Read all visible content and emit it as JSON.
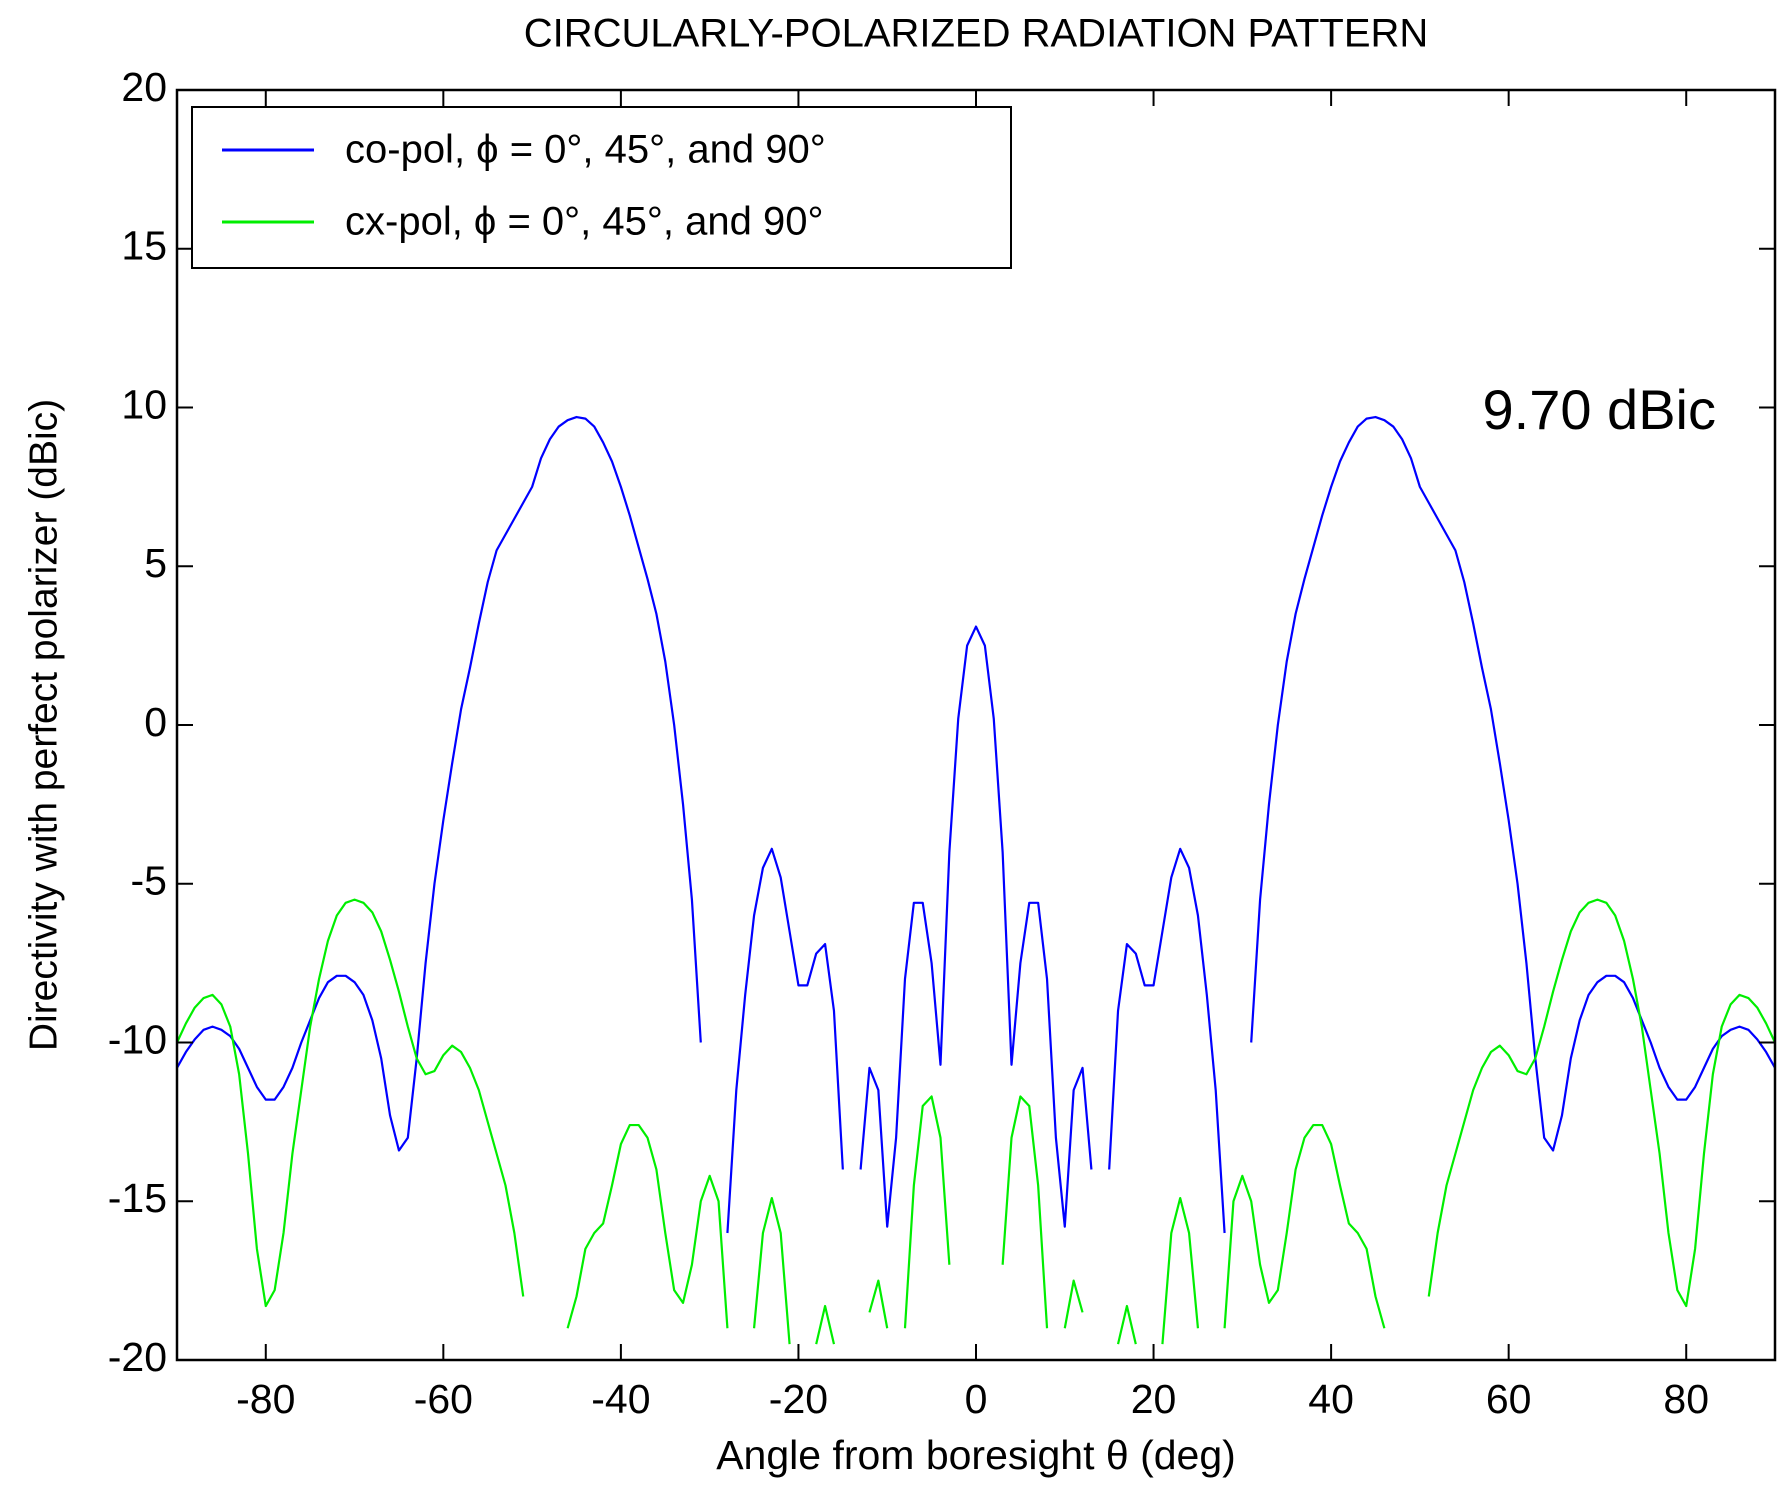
{
  "chart_data": {
    "type": "line",
    "title": "CIRCULARLY-POLARIZED RADIATION PATTERN",
    "x_label": "Angle from boresight θ (deg)",
    "y_label": "Directivity with perfect polarizer (dBic)",
    "annotation": "9.70 dBic",
    "xlim": [
      -90,
      90
    ],
    "xticks": [
      -80,
      -60,
      -40,
      -20,
      0,
      20,
      40,
      60,
      80
    ],
    "ylim": [
      -20,
      20
    ],
    "yticks": [
      -20,
      -15,
      -10,
      -5,
      0,
      5,
      10,
      15,
      20
    ],
    "grid": false,
    "legend": "upper left",
    "x": [
      -90,
      -89,
      -88,
      -87,
      -86,
      -85,
      -84,
      -83,
      -82,
      -81,
      -80,
      -79,
      -78,
      -77,
      -76,
      -75,
      -74,
      -73,
      -72,
      -71,
      -70,
      -69,
      -68,
      -67,
      -66,
      -65,
      -64,
      -63,
      -62,
      -61,
      -60,
      -59,
      -58,
      -57,
      -56,
      -55,
      -54,
      -53,
      -52,
      -51,
      -50,
      -49,
      -48,
      -47,
      -46,
      -45,
      -44,
      -43,
      -42,
      -41,
      -40,
      -39,
      -38,
      -37,
      -36,
      -35,
      -34,
      -33,
      -32,
      -31,
      -30,
      -29,
      -28,
      -27,
      -26,
      -25,
      -24,
      -23,
      -22,
      -21,
      -20,
      -19,
      -18,
      -17,
      -16,
      -15,
      -14,
      -13,
      -12,
      -11,
      -10,
      -9,
      -8,
      -7,
      -6,
      -5,
      -4,
      -3,
      -2,
      -1,
      0,
      1,
      2,
      3,
      4,
      5,
      6,
      7,
      8,
      9,
      10,
      11,
      12,
      13,
      14,
      15,
      16,
      17,
      18,
      19,
      20,
      21,
      22,
      23,
      24,
      25,
      26,
      27,
      28,
      29,
      30,
      31,
      32,
      33,
      34,
      35,
      36,
      37,
      38,
      39,
      40,
      41,
      42,
      43,
      44,
      45,
      46,
      47,
      48,
      49,
      50,
      51,
      52,
      53,
      54,
      55,
      56,
      57,
      58,
      59,
      60,
      61,
      62,
      63,
      64,
      65,
      66,
      67,
      68,
      69,
      70,
      71,
      72,
      73,
      74,
      75,
      76,
      77,
      78,
      79,
      80,
      81,
      82,
      83,
      84,
      85,
      86,
      87,
      88,
      89,
      90
    ],
    "series": [
      {
        "name": "co-pol,  ϕ = 0°, 45°, and 90°",
        "color": "#0000ff",
        "values": [
          -10.8,
          -10.3,
          -9.9,
          -9.6,
          -9.5,
          -9.6,
          -9.8,
          -10.2,
          -10.8,
          -11.4,
          -11.8,
          -11.8,
          -11.4,
          -10.8,
          -10,
          -9.3,
          -8.6,
          -8.1,
          -7.9,
          -7.9,
          -8.1,
          -8.5,
          -9.3,
          -10.5,
          -12.3,
          -13.4,
          -13,
          -10.5,
          -7.5,
          -5,
          -3,
          -1.2,
          0.5,
          1.8,
          3.2,
          4.5,
          5.5,
          6,
          6.5,
          7,
          7.5,
          8.4,
          9.0,
          9.4,
          9.6,
          9.7,
          9.65,
          9.4,
          8.9,
          8.3,
          7.5,
          6.6,
          5.6,
          4.6,
          3.5,
          2,
          0,
          -2.5,
          -5.5,
          -10,
          null,
          null,
          -16,
          -11.5,
          -8.5,
          -6,
          -4.5,
          -3.9,
          -4.8,
          -6.5,
          -8.2,
          -8.2,
          -7.2,
          -6.9,
          -9,
          -14,
          null,
          -14,
          -10.8,
          -11.5,
          -15.8,
          -13,
          -8,
          -5.6,
          -5.6,
          -7.5,
          -10.7,
          -4,
          0.2,
          2.5,
          3.1,
          2.5,
          0.2,
          -4,
          -10.7,
          -7.5,
          -5.6,
          -5.6,
          -8,
          -13,
          -15.8,
          -11.5,
          -10.8,
          -14,
          null,
          -14,
          -9,
          -6.9,
          -7.2,
          -8.2,
          -8.2,
          -6.5,
          -4.8,
          -3.9,
          -4.5,
          -6,
          -8.5,
          -11.5,
          -16,
          null,
          null,
          -10,
          -5.5,
          -2.5,
          0,
          2,
          3.5,
          4.6,
          5.6,
          6.6,
          7.5,
          8.3,
          8.9,
          9.4,
          9.65,
          9.7,
          9.6,
          9.4,
          9.0,
          8.4,
          7.5,
          7,
          6.5,
          6,
          5.5,
          4.5,
          3.2,
          1.8,
          0.5,
          -1.2,
          -3,
          -5,
          -7.5,
          -10.5,
          -13,
          -13.4,
          -12.3,
          -10.5,
          -9.3,
          -8.5,
          -8.1,
          -7.9,
          -7.9,
          -8.1,
          -8.6,
          -9.3,
          -10,
          -10.8,
          -11.4,
          -11.8,
          -11.8,
          -11.4,
          -10.8,
          -10.2,
          -9.8,
          -9.6,
          -9.5,
          -9.6,
          -9.9,
          -10.3,
          -10.8
        ]
      },
      {
        "name": "cx-pol,  ϕ = 0°, 45°, and 90°",
        "color": "#00ee00",
        "values": [
          -10,
          -9.4,
          -8.9,
          -8.6,
          -8.5,
          -8.8,
          -9.5,
          -11,
          -13.5,
          -16.5,
          -18.3,
          -17.8,
          -16,
          -13.5,
          -11.5,
          -9.5,
          -8,
          -6.8,
          -6,
          -5.6,
          -5.5,
          -5.6,
          -5.9,
          -6.5,
          -7.4,
          -8.4,
          -9.5,
          -10.5,
          -11,
          -10.9,
          -10.4,
          -10.1,
          -10.3,
          -10.8,
          -11.5,
          -12.5,
          -13.5,
          -14.5,
          -16,
          -18,
          null,
          null,
          null,
          null,
          -19,
          -18,
          -16.5,
          -16,
          -15.7,
          -14.5,
          -13.2,
          -12.6,
          -12.6,
          -13,
          -14,
          -16,
          -17.8,
          -18.2,
          -17,
          -15,
          -14.2,
          -15,
          -19,
          null,
          null,
          -19,
          -16,
          -14.9,
          -16,
          -19.5,
          null,
          null,
          -19.5,
          -18.3,
          -19.5,
          null,
          null,
          null,
          -18.5,
          -17.5,
          -19,
          null,
          -19,
          -14.5,
          -12,
          -11.7,
          -13,
          -17,
          null,
          null,
          null,
          null,
          null,
          -17,
          -13,
          -11.7,
          -12,
          -14.5,
          -19,
          null,
          -19,
          -17.5,
          -18.5,
          null,
          null,
          null,
          -19.5,
          -18.3,
          -19.5,
          null,
          null,
          -19.5,
          -16,
          -14.9,
          -16,
          -19,
          null,
          null,
          -19,
          -15,
          -14.2,
          -15,
          -17,
          -18.2,
          -17.8,
          -16,
          -14,
          -13,
          -12.6,
          -12.6,
          -13.2,
          -14.5,
          -15.7,
          -16,
          -16.5,
          -18,
          -19,
          null,
          null,
          null,
          null,
          -18,
          -16,
          -14.5,
          -13.5,
          -12.5,
          -11.5,
          -10.8,
          -10.3,
          -10.1,
          -10.4,
          -10.9,
          -11,
          -10.5,
          -9.5,
          -8.4,
          -7.4,
          -6.5,
          -5.9,
          -5.6,
          -5.5,
          -5.6,
          -6,
          -6.8,
          -8,
          -9.5,
          -11.5,
          -13.5,
          -16,
          -17.8,
          -18.3,
          -16.5,
          -13.5,
          -11,
          -9.5,
          -8.8,
          -8.5,
          -8.6,
          -8.9,
          -9.4,
          -10
        ]
      }
    ]
  }
}
